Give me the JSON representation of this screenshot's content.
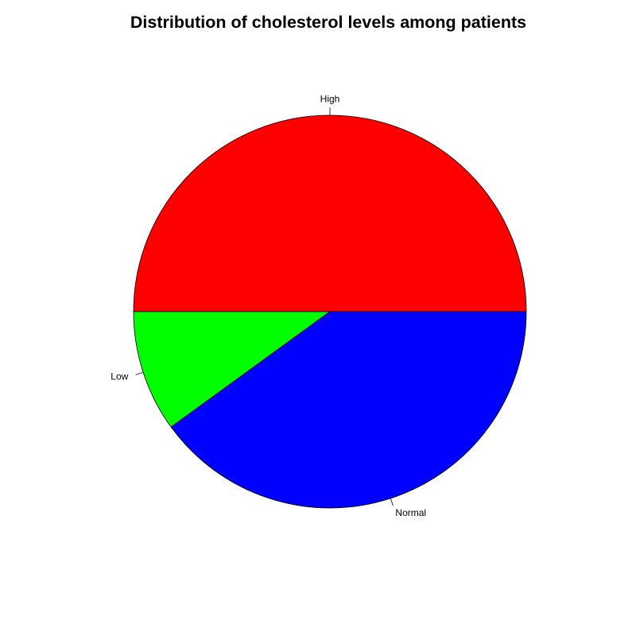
{
  "chart_data": {
    "type": "pie",
    "title": "Distribution of cholesterol levels among patients",
    "slices": [
      {
        "label": "High",
        "value": 50,
        "color": "#ff0000"
      },
      {
        "label": "Low",
        "value": 10,
        "color": "#00ff00"
      },
      {
        "label": "Normal",
        "value": 40,
        "color": "#0000ff"
      }
    ],
    "start_angle_deg": 0,
    "direction": "counterclockwise",
    "border_color": "#000000"
  }
}
